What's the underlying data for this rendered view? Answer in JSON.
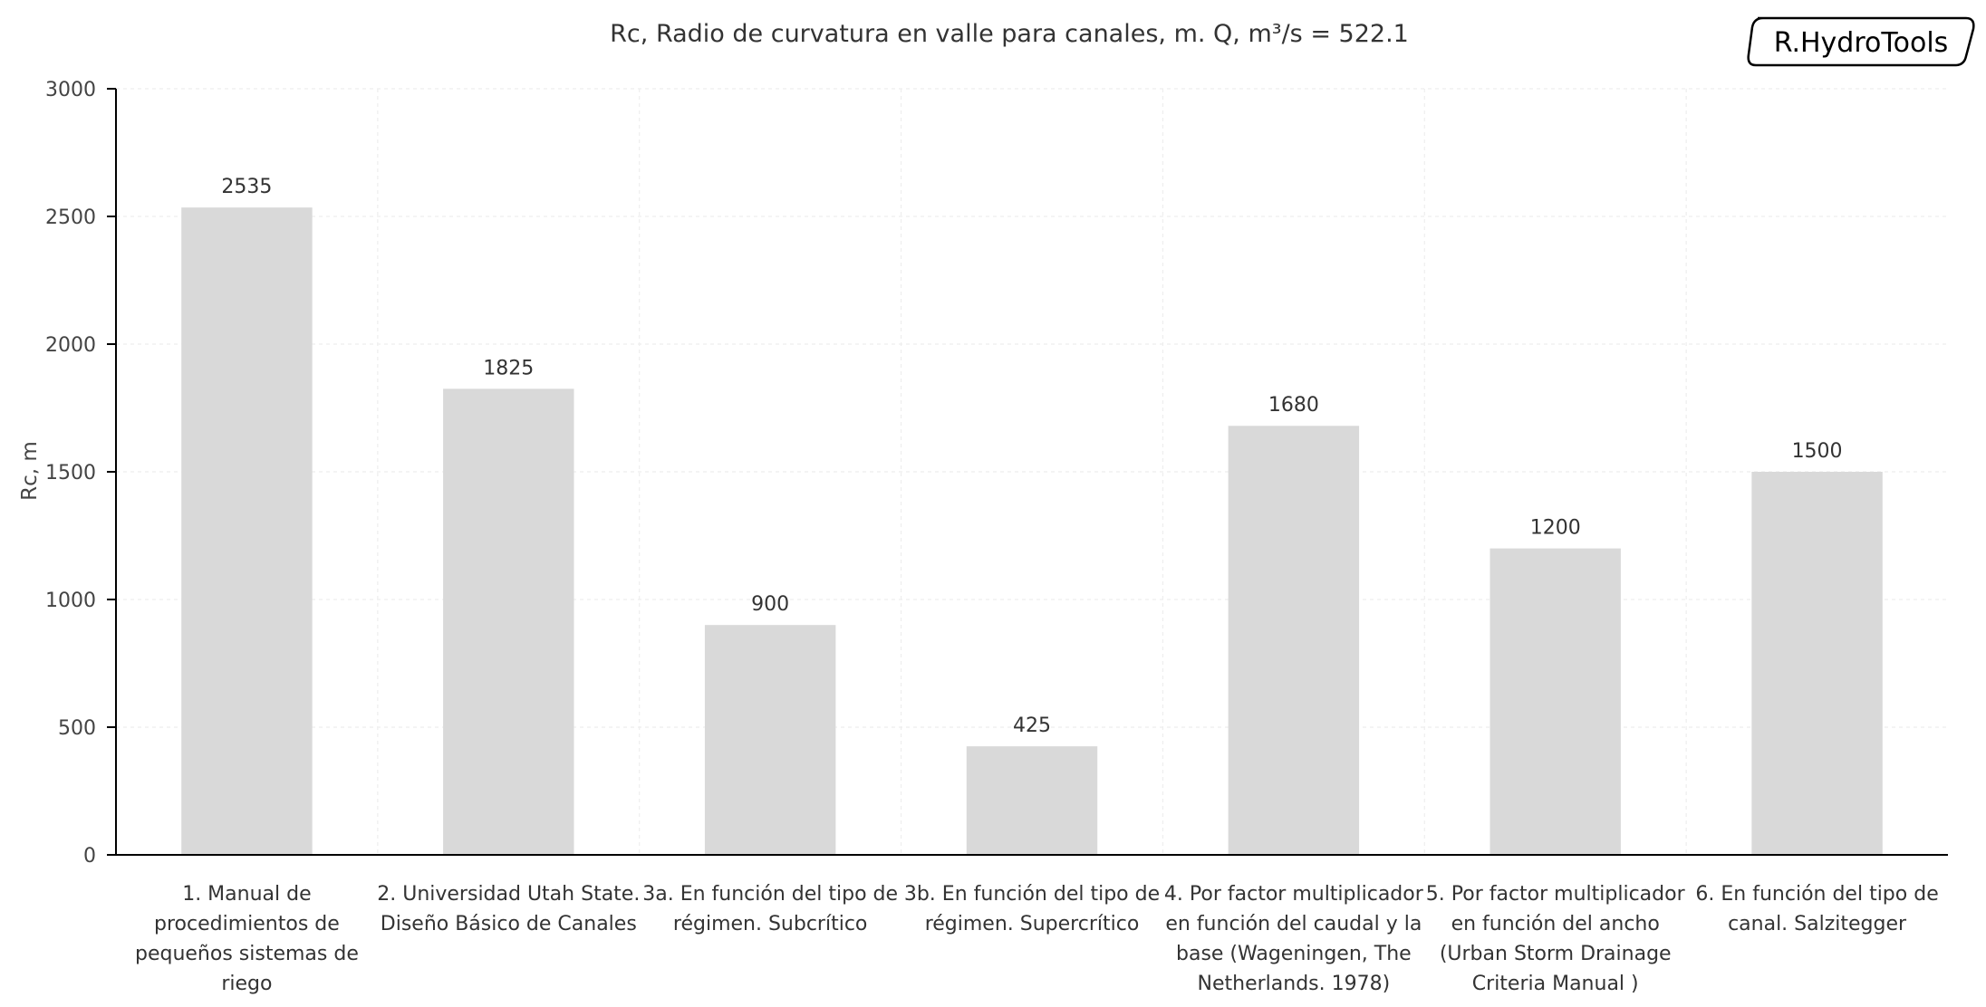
{
  "logo_text": "R.HydroTools",
  "chart_data": {
    "type": "bar",
    "title": "Rc, Radio de curvatura en valle para canales, m. Q, m³/s = 522.1",
    "xlabel": "",
    "ylabel": "Rc, m",
    "ylim": [
      0,
      3000
    ],
    "yticks": [
      0,
      500,
      1000,
      1500,
      2000,
      2500,
      3000
    ],
    "grid": true,
    "bar_color": "#d9d9d9",
    "categories": [
      [
        "1. Manual de",
        "procedimientos de",
        "pequeños sistemas de",
        "riego"
      ],
      [
        "2. Universidad Utah State.",
        "Diseño Básico de Canales"
      ],
      [
        "3a. En función del tipo de",
        "régimen. Subcrítico"
      ],
      [
        "3b. En función del tipo de",
        "régimen. Supercrítico"
      ],
      [
        "4. Por factor multiplicador",
        "en función del caudal y la",
        "base (Wageningen, The",
        "Netherlands. 1978)"
      ],
      [
        "5. Por factor multiplicador",
        "en función del ancho",
        "(Urban Storm Drainage",
        "Criteria Manual )"
      ],
      [
        "6. En función del tipo de",
        "canal. Salzitegger"
      ]
    ],
    "values": [
      2535,
      1825,
      900,
      425,
      1680,
      1200,
      1500
    ],
    "data_labels": [
      "2535",
      "1825",
      "900",
      "425",
      "1680",
      "1200",
      "1500"
    ]
  }
}
